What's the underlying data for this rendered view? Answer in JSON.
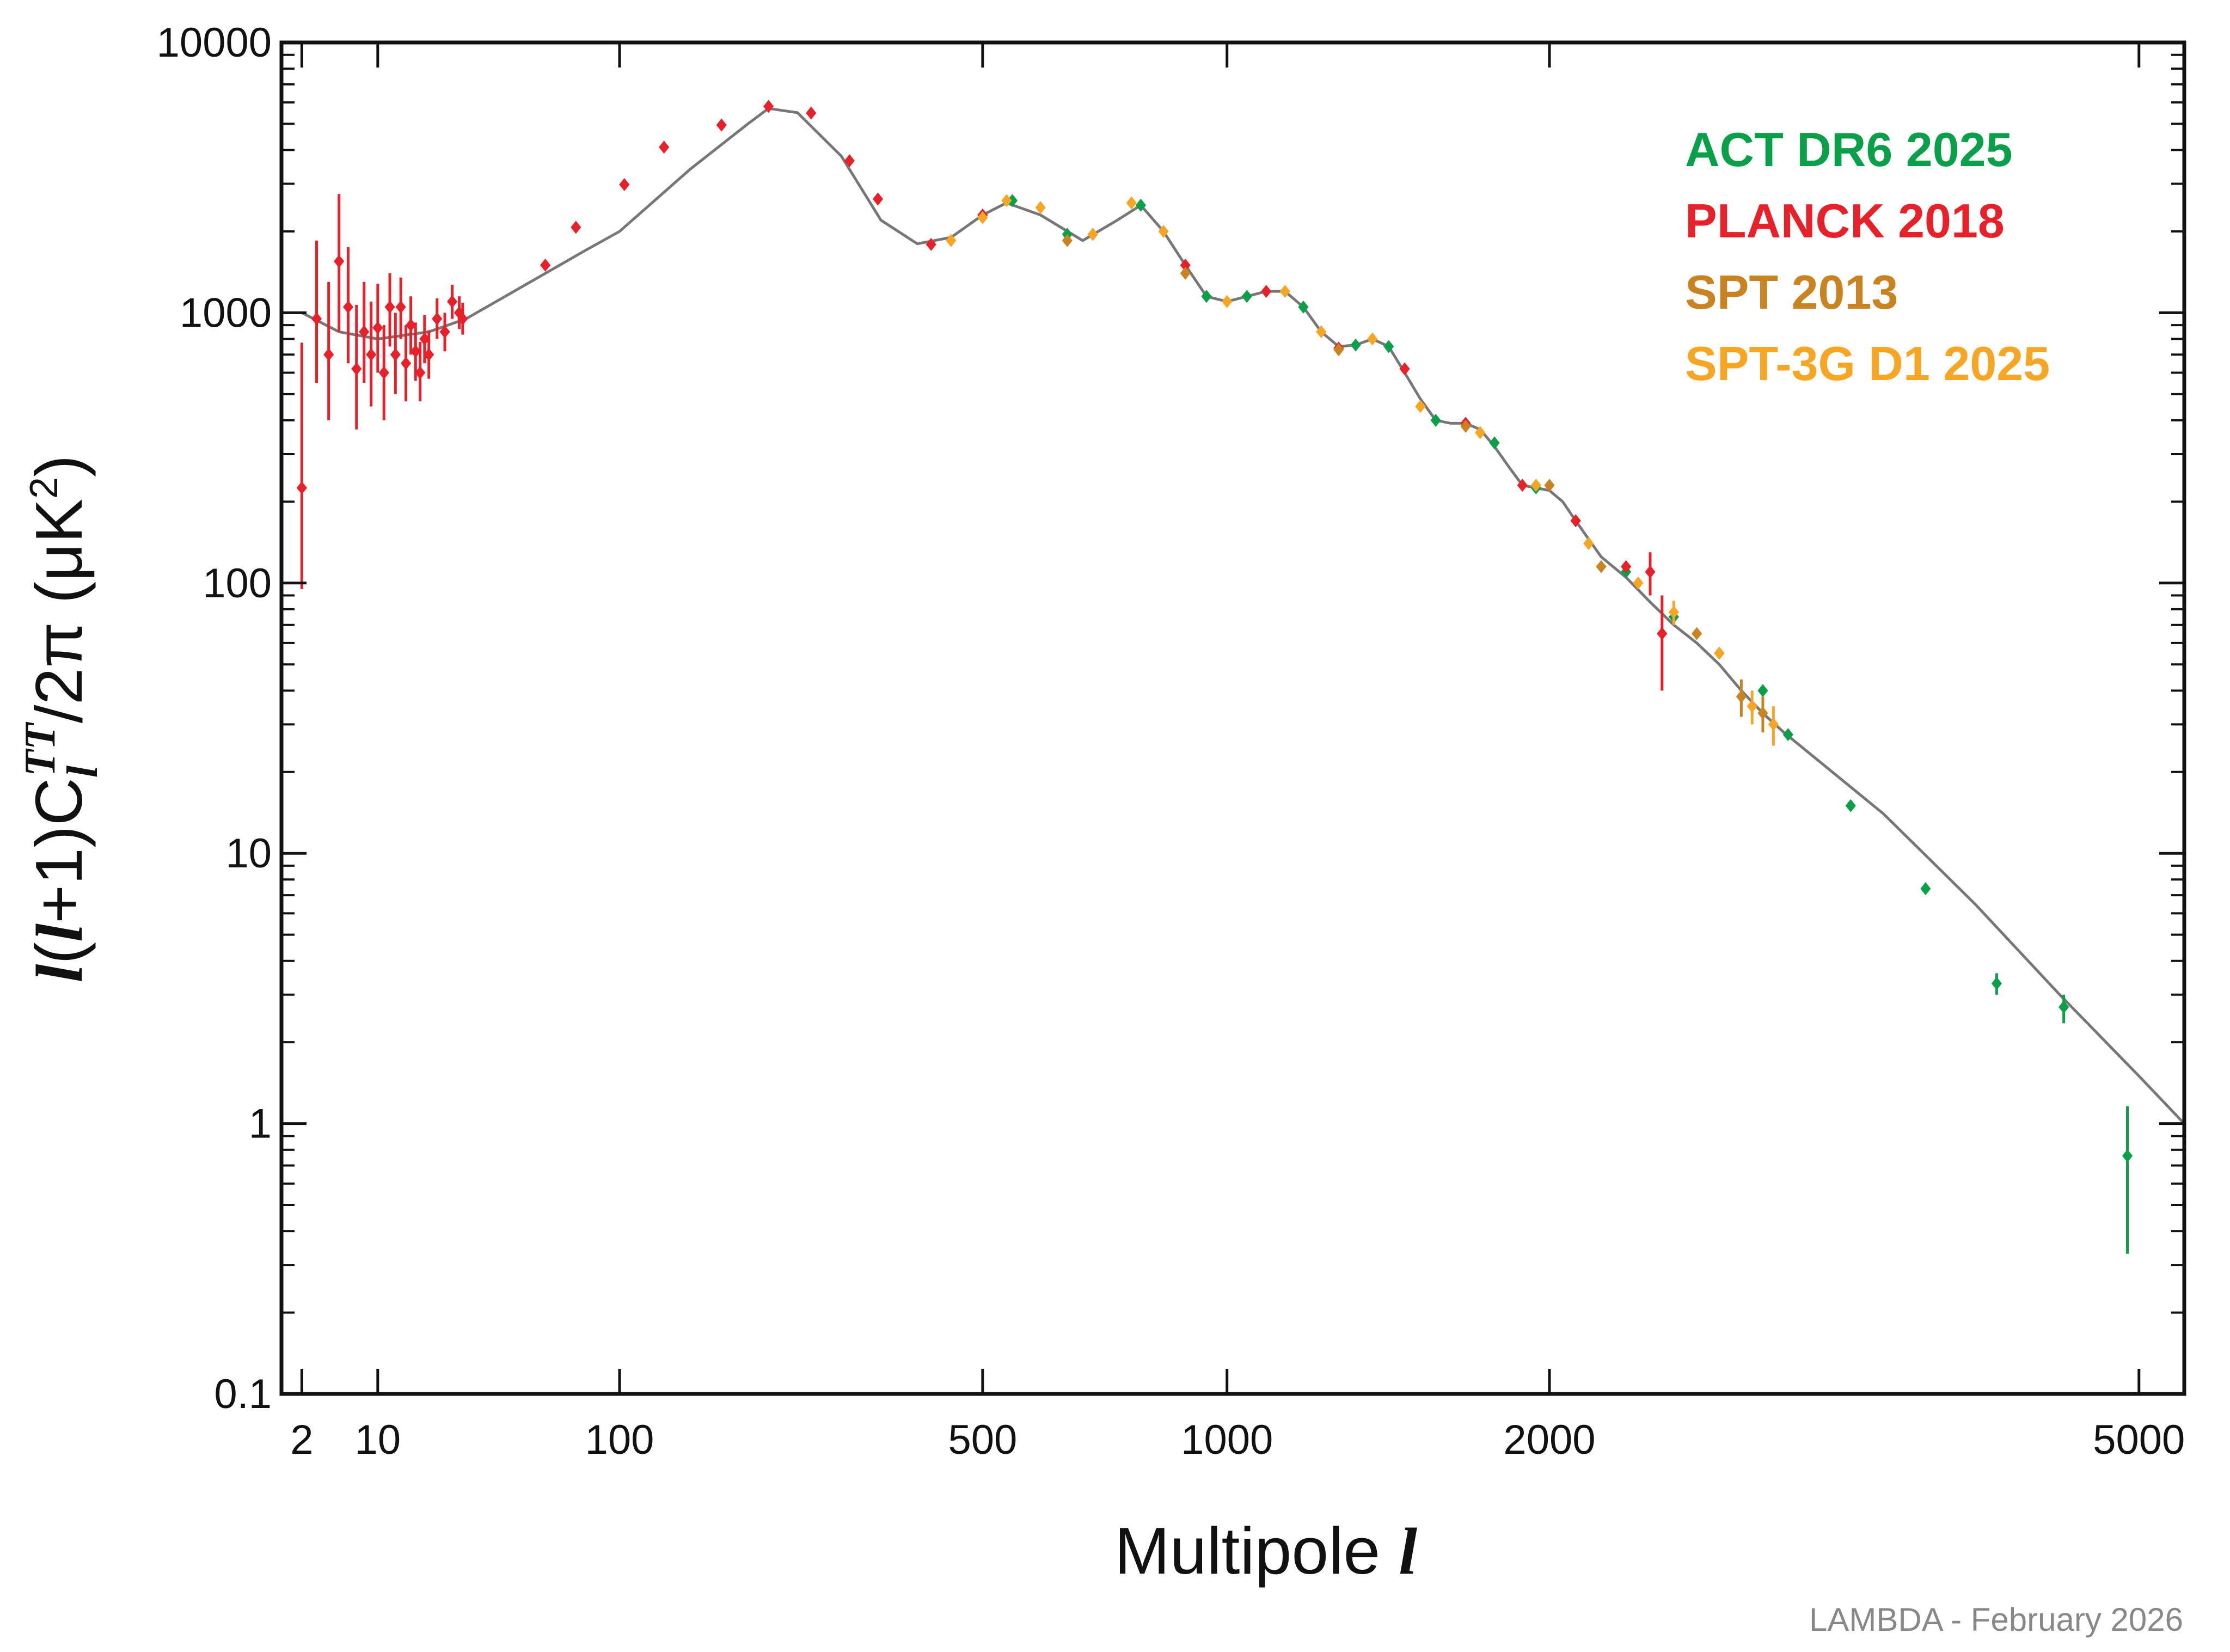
{
  "chart_data": {
    "type": "scatter",
    "ylabel": [
      "l",
      "(",
      "l",
      "+1)C",
      "l",
      "TT",
      "/2π (μK",
      "2",
      ")"
    ],
    "xlabel": [
      "Multipole ",
      "l"
    ],
    "footnote": "LAMBDA - February 2026",
    "xscale": "power",
    "xpower": 0.4,
    "xlim": [
      1,
      5300
    ],
    "xticks": [
      2,
      10,
      100,
      500,
      1000,
      2000,
      5000
    ],
    "yscale": "log",
    "ylim": [
      0.1,
      10000
    ],
    "yticks": [
      0.1,
      1,
      10,
      100,
      1000,
      10000
    ],
    "yminorticks": [
      0.2,
      0.3,
      0.4,
      0.5,
      0.6,
      0.7,
      0.8,
      0.9,
      2,
      3,
      4,
      5,
      6,
      7,
      8,
      9,
      20,
      30,
      40,
      50,
      60,
      70,
      80,
      90,
      200,
      300,
      400,
      500,
      600,
      700,
      800,
      900,
      2000,
      3000,
      4000,
      5000,
      6000,
      7000,
      8000,
      9000
    ],
    "legend": "upper right",
    "theory": {
      "color": "#777777",
      "x": [
        2,
        5,
        10,
        20,
        30,
        50,
        80,
        100,
        150,
        200,
        220,
        250,
        300,
        350,
        400,
        450,
        500,
        540,
        600,
        680,
        750,
        800,
        850,
        900,
        950,
        1000,
        1050,
        1100,
        1150,
        1200,
        1250,
        1300,
        1350,
        1400,
        1450,
        1500,
        1550,
        1600,
        1650,
        1700,
        1750,
        1800,
        1850,
        1900,
        1950,
        2000,
        2050,
        2100,
        2200,
        2300,
        2400,
        2500,
        2600,
        2700,
        2800,
        2900,
        3000,
        3500,
        4000,
        4500,
        5000,
        5300
      ],
      "values": [
        1000,
        850,
        800,
        850,
        950,
        1250,
        1700,
        2000,
        3400,
        5000,
        5700,
        5500,
        3800,
        2200,
        1800,
        1900,
        2300,
        2550,
        2300,
        1850,
        2200,
        2500,
        2000,
        1500,
        1150,
        1100,
        1150,
        1200,
        1200,
        1050,
        850,
        750,
        760,
        800,
        750,
        600,
        480,
        400,
        390,
        390,
        370,
        320,
        270,
        230,
        225,
        220,
        200,
        170,
        125,
        105,
        85,
        70,
        60,
        50,
        40,
        33,
        28,
        14,
        6.5,
        3,
        1.5,
        1.0
      ]
    },
    "series": [
      {
        "name": "ACT DR6 2025",
        "color": "#0aa04a",
        "x": [
          550,
          650,
          800,
          950,
          1050,
          1200,
          1350,
          1450,
          1600,
          1800,
          1950,
          2100,
          2300,
          2500,
          2700,
          2900,
          3020,
          3330,
          3725,
          4125,
          4525,
          4925
        ],
        "values": [
          2600,
          1950,
          2500,
          1150,
          1150,
          1050,
          760,
          750,
          400,
          330,
          225,
          170,
          110,
          75,
          55,
          40,
          27.5,
          15,
          7.4,
          3.3,
          2.7,
          0.76
        ],
        "error_minus": [
          null,
          null,
          null,
          null,
          null,
          null,
          null,
          null,
          null,
          null,
          null,
          null,
          null,
          null,
          null,
          null,
          null,
          null,
          null,
          0.3,
          0.35,
          0.43
        ],
        "error_plus": [
          null,
          null,
          null,
          null,
          null,
          null,
          null,
          null,
          null,
          null,
          null,
          null,
          null,
          null,
          null,
          null,
          null,
          null,
          null,
          0.3,
          0.3,
          0.4
        ]
      },
      {
        "name": "PLANCK 2018",
        "color": "#e8202a",
        "x": [
          2,
          3,
          4,
          5,
          6,
          7,
          8,
          9,
          10,
          11,
          12,
          13,
          14,
          15,
          16,
          17,
          18,
          19,
          20,
          22,
          24,
          26,
          28,
          29,
          60,
          75,
          103,
          130,
          176,
          220,
          265,
          310,
          346,
          420,
          500,
          700,
          900,
          1100,
          1300,
          1500,
          1700,
          1900,
          2100,
          2300,
          2400,
          2450
        ],
        "values": [
          225,
          950,
          700,
          1550,
          1050,
          620,
          850,
          700,
          880,
          600,
          1050,
          700,
          1050,
          650,
          900,
          720,
          600,
          800,
          700,
          950,
          850,
          1100,
          1000,
          950,
          1500,
          2070,
          2980,
          4100,
          4950,
          5800,
          5480,
          3650,
          2635,
          1790,
          2300,
          1950,
          1500,
          1200,
          740,
          620,
          390,
          230,
          170,
          115,
          110,
          65
        ],
        "error_minus": [
          130,
          400,
          300,
          700,
          400,
          250,
          300,
          250,
          280,
          200,
          300,
          200,
          250,
          180,
          200,
          160,
          130,
          150,
          130,
          150,
          130,
          150,
          130,
          120,
          null,
          null,
          null,
          null,
          null,
          null,
          null,
          null,
          null,
          null,
          null,
          null,
          null,
          null,
          null,
          null,
          null,
          null,
          null,
          null,
          20,
          25
        ],
        "error_plus": [
          550,
          900,
          600,
          1200,
          700,
          450,
          450,
          400,
          400,
          300,
          350,
          300,
          300,
          250,
          250,
          200,
          180,
          180,
          160,
          180,
          150,
          170,
          150,
          140,
          null,
          null,
          null,
          null,
          null,
          null,
          null,
          null,
          null,
          null,
          null,
          null,
          null,
          null,
          null,
          null,
          null,
          null,
          null,
          null,
          20,
          25
        ]
      },
      {
        "name": "SPT 2013",
        "color": "#c98421",
        "x": [
          650,
          900,
          1300,
          1700,
          2000,
          2200,
          2600,
          2800,
          2900
        ],
        "values": [
          1850,
          1400,
          730,
          380,
          230,
          115,
          65,
          38,
          33
        ],
        "error_minus": [
          null,
          null,
          null,
          null,
          null,
          null,
          null,
          6,
          5
        ],
        "error_plus": [
          null,
          null,
          null,
          null,
          null,
          null,
          null,
          6,
          5
        ]
      },
      {
        "name": "SPT-3G D1 2025",
        "color": "#f6a623",
        "x": [
          450,
          500,
          540,
          600,
          700,
          780,
          850,
          1000,
          1150,
          1250,
          1400,
          1550,
          1750,
          1950,
          2150,
          2350,
          2500,
          2700,
          2850,
          2950
        ],
        "values": [
          1850,
          2250,
          2600,
          2450,
          1950,
          2550,
          2000,
          1100,
          1200,
          850,
          800,
          450,
          360,
          230,
          140,
          100,
          78,
          55,
          35,
          30
        ],
        "error_minus": [
          null,
          null,
          null,
          null,
          null,
          null,
          null,
          null,
          null,
          null,
          null,
          null,
          null,
          null,
          null,
          null,
          8,
          null,
          5,
          5
        ],
        "error_plus": [
          null,
          null,
          null,
          null,
          null,
          null,
          null,
          null,
          null,
          null,
          null,
          null,
          null,
          null,
          null,
          null,
          8,
          null,
          5,
          5
        ]
      }
    ]
  }
}
